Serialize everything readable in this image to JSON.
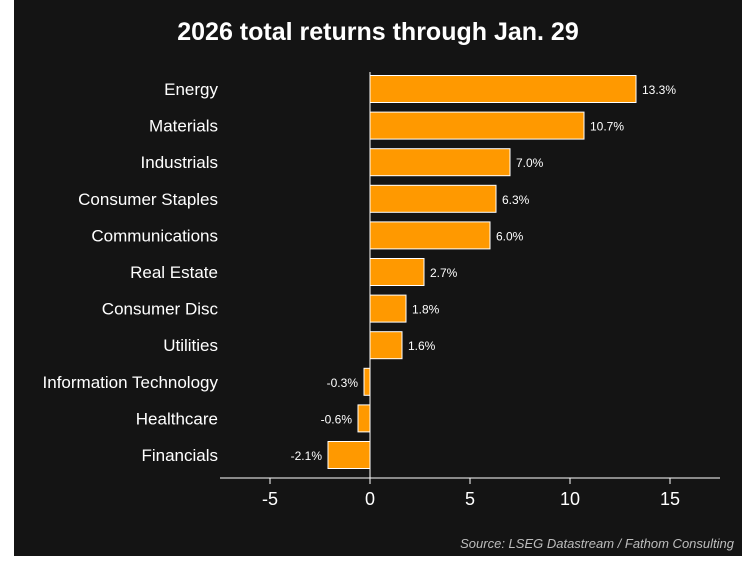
{
  "chart_data": {
    "type": "bar",
    "orientation": "horizontal",
    "title": "2026 total returns through Jan. 29",
    "categories": [
      "Energy",
      "Materials",
      "Industrials",
      "Consumer Staples",
      "Communications",
      "Real Estate",
      "Consumer Disc",
      "Utilities",
      "Information Technology",
      "Healthcare",
      "Financials"
    ],
    "values": [
      13.3,
      10.7,
      7.0,
      6.3,
      6.0,
      2.7,
      1.8,
      1.6,
      -0.3,
      -0.6,
      -2.1
    ],
    "data_labels": [
      "13.3%",
      "10.7%",
      "7.0%",
      "6.3%",
      "6.0%",
      "2.7%",
      "1.8%",
      "1.6%",
      "-0.3%",
      "-0.6%",
      "-2.1%"
    ],
    "xlim": [
      -7.5,
      17.5
    ],
    "xticks": [
      -5,
      0,
      5,
      10,
      15
    ],
    "xtick_labels": [
      "-5",
      "0",
      "5",
      "10",
      "15"
    ],
    "xlabel": "",
    "ylabel": "",
    "grid": false,
    "bar_color": "#FF9900",
    "bar_edge_color": "#FFFFFF",
    "background_color": "#141414",
    "source": "Source: LSEG Datastream / Fathom Consulting"
  }
}
